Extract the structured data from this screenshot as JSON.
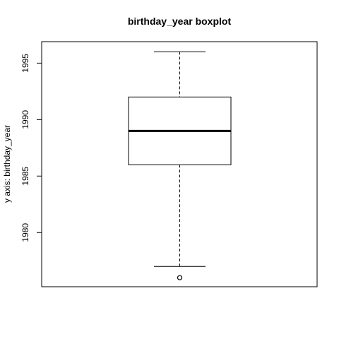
{
  "chart_data": {
    "type": "boxplot",
    "title": "birthday_year boxplot",
    "xlabel": "",
    "ylabel": "y axis: birthday_year",
    "ylim": [
      1975.2,
      1996.9
    ],
    "yticks": [
      1980,
      1985,
      1990,
      1995
    ],
    "box": {
      "whisker_low": 1977,
      "q1": 1986,
      "median": 1989,
      "q3": 1992,
      "whisker_high": 1996,
      "outliers": [
        1976
      ]
    },
    "grid": false,
    "legend": "none"
  }
}
